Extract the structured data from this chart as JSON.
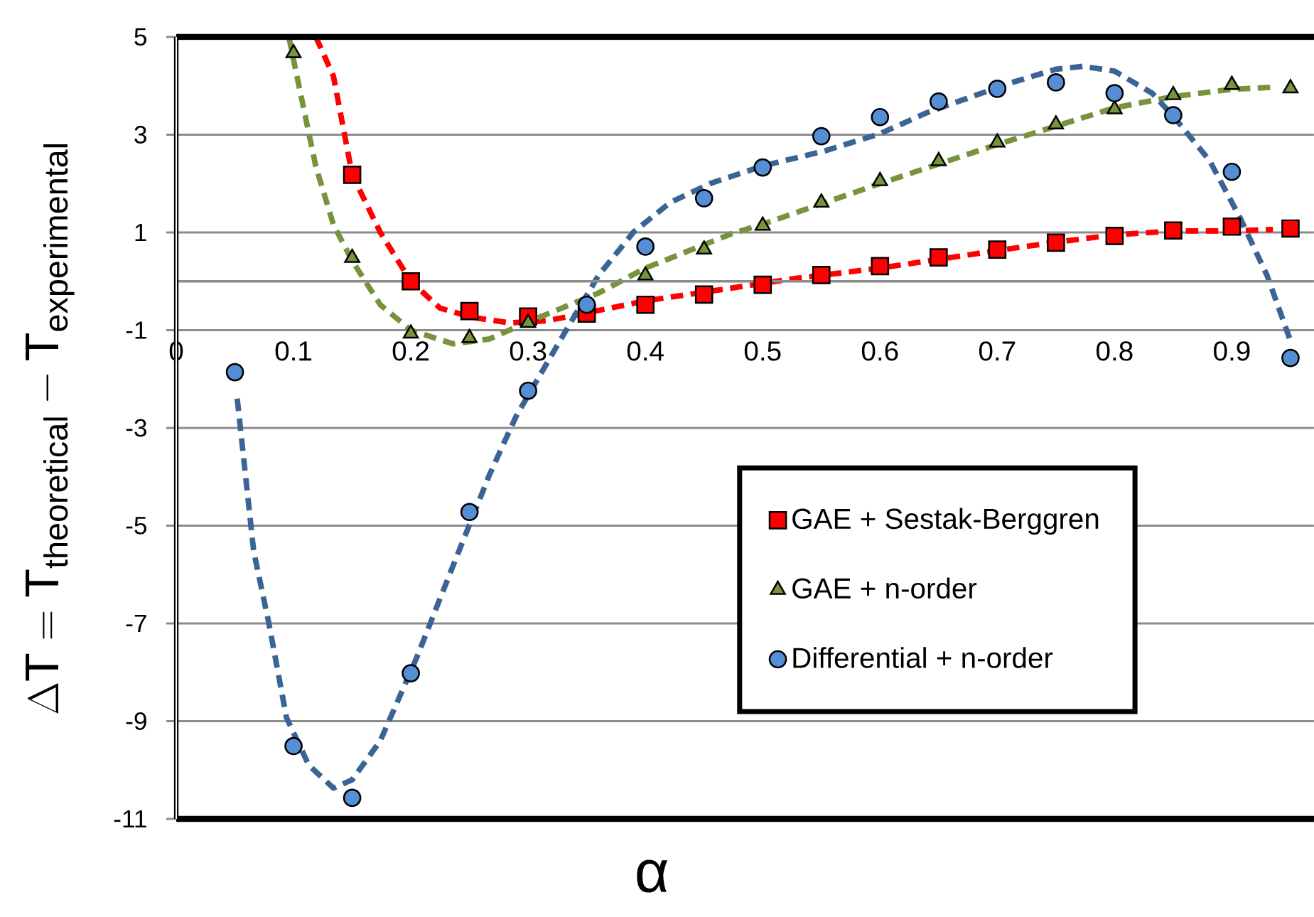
{
  "chart_data": {
    "type": "scatter",
    "xlabel": "α",
    "ylabel": "\\Delta \\mathrm{T} = \\mathrm{T}_{\\mathrm{theoretical}} - \\mathrm{T}_{\\mathrm{experimental}}",
    "xlim": [
      0,
      0.97
    ],
    "ylim": [
      -11,
      5
    ],
    "xticks": [
      0,
      0.1,
      0.2,
      0.3,
      0.4,
      0.5,
      0.6,
      0.7,
      0.8,
      0.9
    ],
    "yticks": [
      -11,
      -9,
      -7,
      -5,
      -3,
      -1,
      1,
      3,
      5
    ],
    "grid": "y",
    "legend": "bottom right",
    "x": [
      0.05,
      0.1,
      0.15,
      0.2,
      0.25,
      0.3,
      0.35,
      0.4,
      0.45,
      0.5,
      0.55,
      0.6,
      0.65,
      0.7,
      0.75,
      0.8,
      0.85,
      0.9,
      0.95
    ],
    "series": [
      {
        "name": "GAE + Sestak-Berggren",
        "marker": "square",
        "color": "#ff0000",
        "values": [
          null,
          null,
          2.18,
          0.0,
          -0.61,
          -0.72,
          -0.66,
          -0.48,
          -0.27,
          -0.07,
          0.13,
          0.31,
          0.49,
          0.65,
          0.79,
          0.93,
          1.04,
          1.12,
          1.08
        ]
      },
      {
        "name": "GAE + n-order",
        "marker": "triangle",
        "color": "#77933c",
        "values": [
          null,
          4.67,
          0.48,
          -1.07,
          -1.16,
          -0.85,
          null,
          0.12,
          0.65,
          1.14,
          1.61,
          2.05,
          2.46,
          2.84,
          3.21,
          3.52,
          3.81,
          4.02,
          3.95
        ]
      },
      {
        "name": "Differential + n-order",
        "marker": "circle",
        "color": "#558ed5",
        "values": [
          -1.86,
          -9.51,
          -10.57,
          -8.02,
          -4.72,
          -2.24,
          -0.48,
          0.71,
          1.7,
          2.33,
          2.97,
          3.36,
          3.68,
          3.94,
          4.07,
          3.85,
          3.4,
          2.24,
          -1.57
        ]
      },
      {
        "type": "line",
        "marker": "none",
        "line_style": "dashed",
        "color": "#ff0000",
        "x": [
          0.119,
          0.134,
          0.15,
          0.174,
          0.2,
          0.225,
          0.253,
          0.284,
          0.315,
          0.335,
          0.4,
          0.473,
          0.525,
          0.6,
          0.7,
          0.75,
          0.8,
          0.85,
          0.9,
          0.935
        ],
        "values": [
          5.0,
          4.2,
          2.18,
          1.0,
          0.0,
          -0.55,
          -0.74,
          -0.85,
          -0.81,
          -0.72,
          -0.4,
          -0.14,
          0.05,
          0.27,
          0.63,
          0.8,
          0.95,
          1.03,
          1.03,
          1.06
        ]
      },
      {
        "type": "line",
        "marker": "none",
        "line_style": "dashed",
        "color": "#77933c",
        "x": [
          0.096,
          0.106,
          0.119,
          0.134,
          0.15,
          0.174,
          0.2,
          0.236,
          0.267,
          0.298,
          0.36,
          0.4,
          0.473,
          0.5,
          0.6,
          0.7,
          0.8,
          0.85,
          0.9,
          0.935
        ],
        "values": [
          5.0,
          3.84,
          2.35,
          1.16,
          0.42,
          -0.48,
          -1.0,
          -1.28,
          -1.18,
          -0.85,
          -0.24,
          0.27,
          0.97,
          1.17,
          2.0,
          2.8,
          3.55,
          3.78,
          3.93,
          3.97
        ]
      },
      {
        "type": "line",
        "marker": "none",
        "line_style": "dashed",
        "color": "#3a6496",
        "x": [
          0.052,
          0.066,
          0.079,
          0.094,
          0.113,
          0.134,
          0.15,
          0.174,
          0.205,
          0.236,
          0.267,
          0.29,
          0.329,
          0.36,
          0.39,
          0.421,
          0.455,
          0.5,
          0.553,
          0.6,
          0.64,
          0.71,
          0.75,
          0.773,
          0.8,
          0.832,
          0.85,
          0.881,
          0.907,
          0.93,
          0.95
        ],
        "values": [
          -2.4,
          -5.52,
          -7.0,
          -8.93,
          -9.9,
          -10.37,
          -10.2,
          -9.4,
          -7.7,
          -5.82,
          -3.96,
          -2.75,
          -1.14,
          0.12,
          1.01,
          1.61,
          2.0,
          2.36,
          2.67,
          3.02,
          3.45,
          4.05,
          4.34,
          4.4,
          4.3,
          3.85,
          3.38,
          2.47,
          1.3,
          0.12,
          -1.22
        ]
      }
    ]
  }
}
